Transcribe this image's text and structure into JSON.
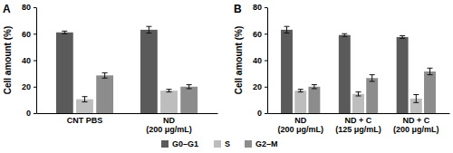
{
  "chart_data": [
    {
      "type": "bar",
      "title": "A",
      "y_label": "Cell amount (%)",
      "categories": [
        "CNT PBS",
        "ND\n(200 μg/mL)"
      ],
      "series": [
        {
          "name": "G0–G1",
          "color": "#5a5a5a",
          "values": [
            61,
            63
          ],
          "errors": [
            1,
            2.5
          ]
        },
        {
          "name": "S",
          "color": "#bdbdbd",
          "values": [
            10.5,
            17
          ],
          "errors": [
            2,
            1
          ]
        },
        {
          "name": "G2–M",
          "color": "#8c8c8c",
          "values": [
            28.5,
            20
          ],
          "errors": [
            2,
            1.5
          ]
        }
      ],
      "ylim": [
        0,
        80
      ],
      "yticks": [
        0,
        20,
        40,
        60,
        80
      ],
      "legend": "bottom"
    },
    {
      "type": "bar",
      "title": "B",
      "y_label": "Cell amount (%)",
      "categories": [
        "ND\n(200 μg/mL)",
        "ND + C\n(125 μg/mL)",
        "ND + C\n(200 μg/mL)"
      ],
      "series": [
        {
          "name": "G0–G1",
          "color": "#5a5a5a",
          "values": [
            63,
            59,
            57.5
          ],
          "errors": [
            2.5,
            1,
            1
          ]
        },
        {
          "name": "S",
          "color": "#bdbdbd",
          "values": [
            17,
            14.5,
            11
          ],
          "errors": [
            1,
            1.5,
            3
          ]
        },
        {
          "name": "G2–M",
          "color": "#8c8c8c",
          "values": [
            20,
            26.5,
            31.5
          ],
          "errors": [
            1.5,
            2.5,
            2.5
          ]
        }
      ],
      "ylim": [
        0,
        80
      ],
      "yticks": [
        0,
        20,
        40,
        60,
        80
      ],
      "legend": "bottom"
    }
  ]
}
